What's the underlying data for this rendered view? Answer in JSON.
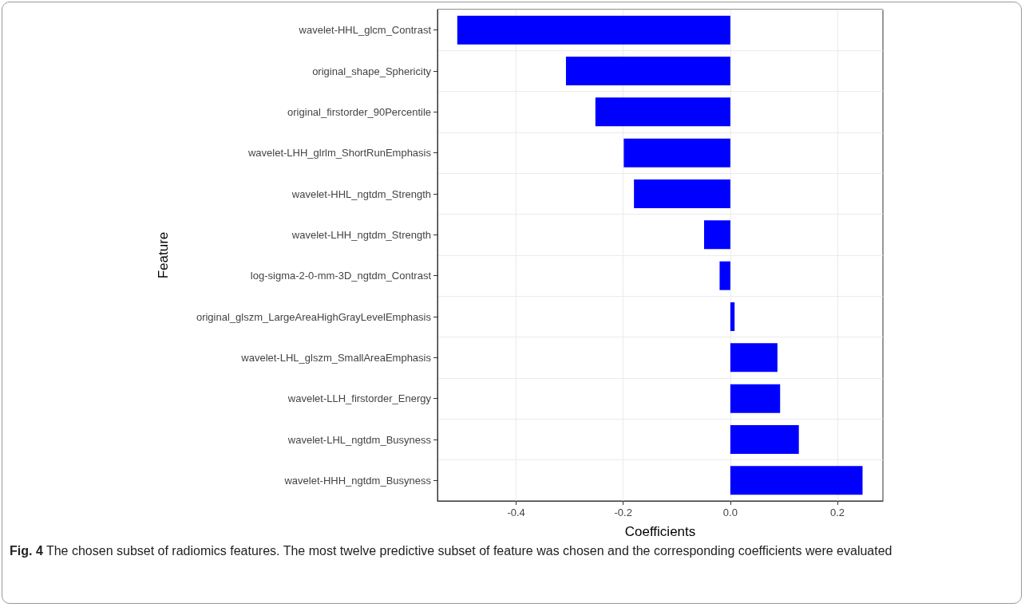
{
  "chart_data": {
    "type": "bar",
    "orientation": "horizontal",
    "xlabel": "Coefficients",
    "ylabel": "Feature",
    "categories": [
      "wavelet-HHL_glcm_Contrast",
      "original_shape_Sphericity",
      "original_firstorder_90Percentile",
      "wavelet-LHH_glrlm_ShortRunEmphasis",
      "wavelet-HHL_ngtdm_Strength",
      "wavelet-LHH_ngtdm_Strength",
      "log-sigma-2-0-mm-3D_ngtdm_Contrast",
      "original_glszm_LargeAreaHighGrayLevelEmphasis",
      "wavelet-LHL_glszm_SmallAreaEmphasis",
      "wavelet-LLH_firstorder_Energy",
      "wavelet-LHL_ngtdm_Busyness",
      "wavelet-HHH_ngtdm_Busyness"
    ],
    "values": [
      -0.51,
      -0.307,
      -0.252,
      -0.199,
      -0.18,
      -0.049,
      -0.02,
      0.008,
      0.088,
      0.093,
      0.128,
      0.247
    ],
    "color": "#0000ff",
    "xlim": [
      -0.547,
      0.285
    ],
    "xticks": [
      -0.4,
      -0.2,
      {
        "value": 0,
        "label": "0.0"
      },
      0.2
    ],
    "grid": true,
    "annotations": [
      "Fig. 4  The chosen subset of radiomics features. The most twelve predictive subset of feature was chosen and the corresponding coefficients were evaluated"
    ]
  }
}
